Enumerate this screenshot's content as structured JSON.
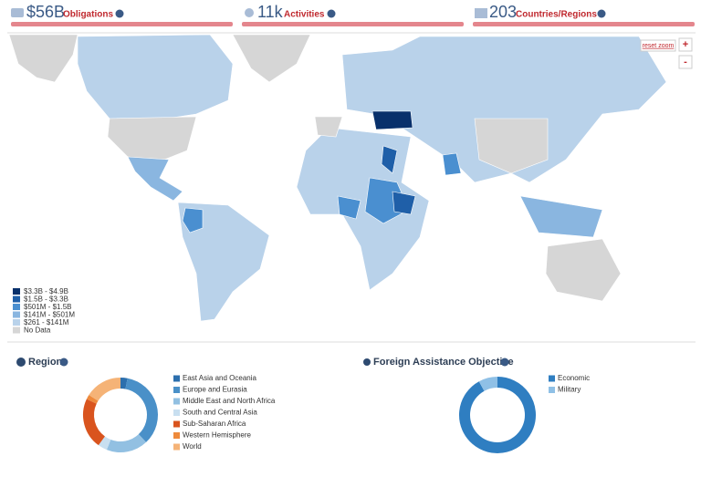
{
  "header": {
    "stats": [
      {
        "value": "$56B",
        "label": "Obligations"
      },
      {
        "value": "11k",
        "label": "Activities"
      },
      {
        "value": "203",
        "label": "Countries/Regions"
      }
    ]
  },
  "map": {
    "controls": {
      "reset": "reset zoom",
      "zoom_in": "+",
      "zoom_out": "-"
    },
    "legend": [
      {
        "label": "$3.3B - $4.9B",
        "color": "#08306b"
      },
      {
        "label": "$1.5B - $3.3B",
        "color": "#1f5fa8"
      },
      {
        "label": "$501M - $1.5B",
        "color": "#4a8fd0"
      },
      {
        "label": "$141M - $501M",
        "color": "#8ab6e0"
      },
      {
        "label": "$261 - $141M",
        "color": "#b9d2ea"
      },
      {
        "label": "No Data",
        "color": "#d6d6d6"
      }
    ]
  },
  "chart_data": [
    {
      "type": "donut",
      "title": "Region",
      "categories": [
        "East Asia and Oceania",
        "Europe and Eurasia",
        "Middle East and North Africa",
        "South and Central Asia",
        "Sub-Saharan Africa",
        "Western Hemisphere",
        "World"
      ],
      "values": [
        3,
        35,
        18,
        4,
        22,
        2,
        16
      ],
      "colors": [
        "#2c6fad",
        "#4a90c8",
        "#92c0e2",
        "#c8dff0",
        "#d9541e",
        "#ee8a3c",
        "#f5b377"
      ]
    },
    {
      "type": "donut",
      "title": "Foreign Assistance Objective",
      "categories": [
        "Economic",
        "Military"
      ],
      "values": [
        92,
        8
      ],
      "colors": [
        "#2f7ec1",
        "#8fc0e6"
      ]
    }
  ]
}
